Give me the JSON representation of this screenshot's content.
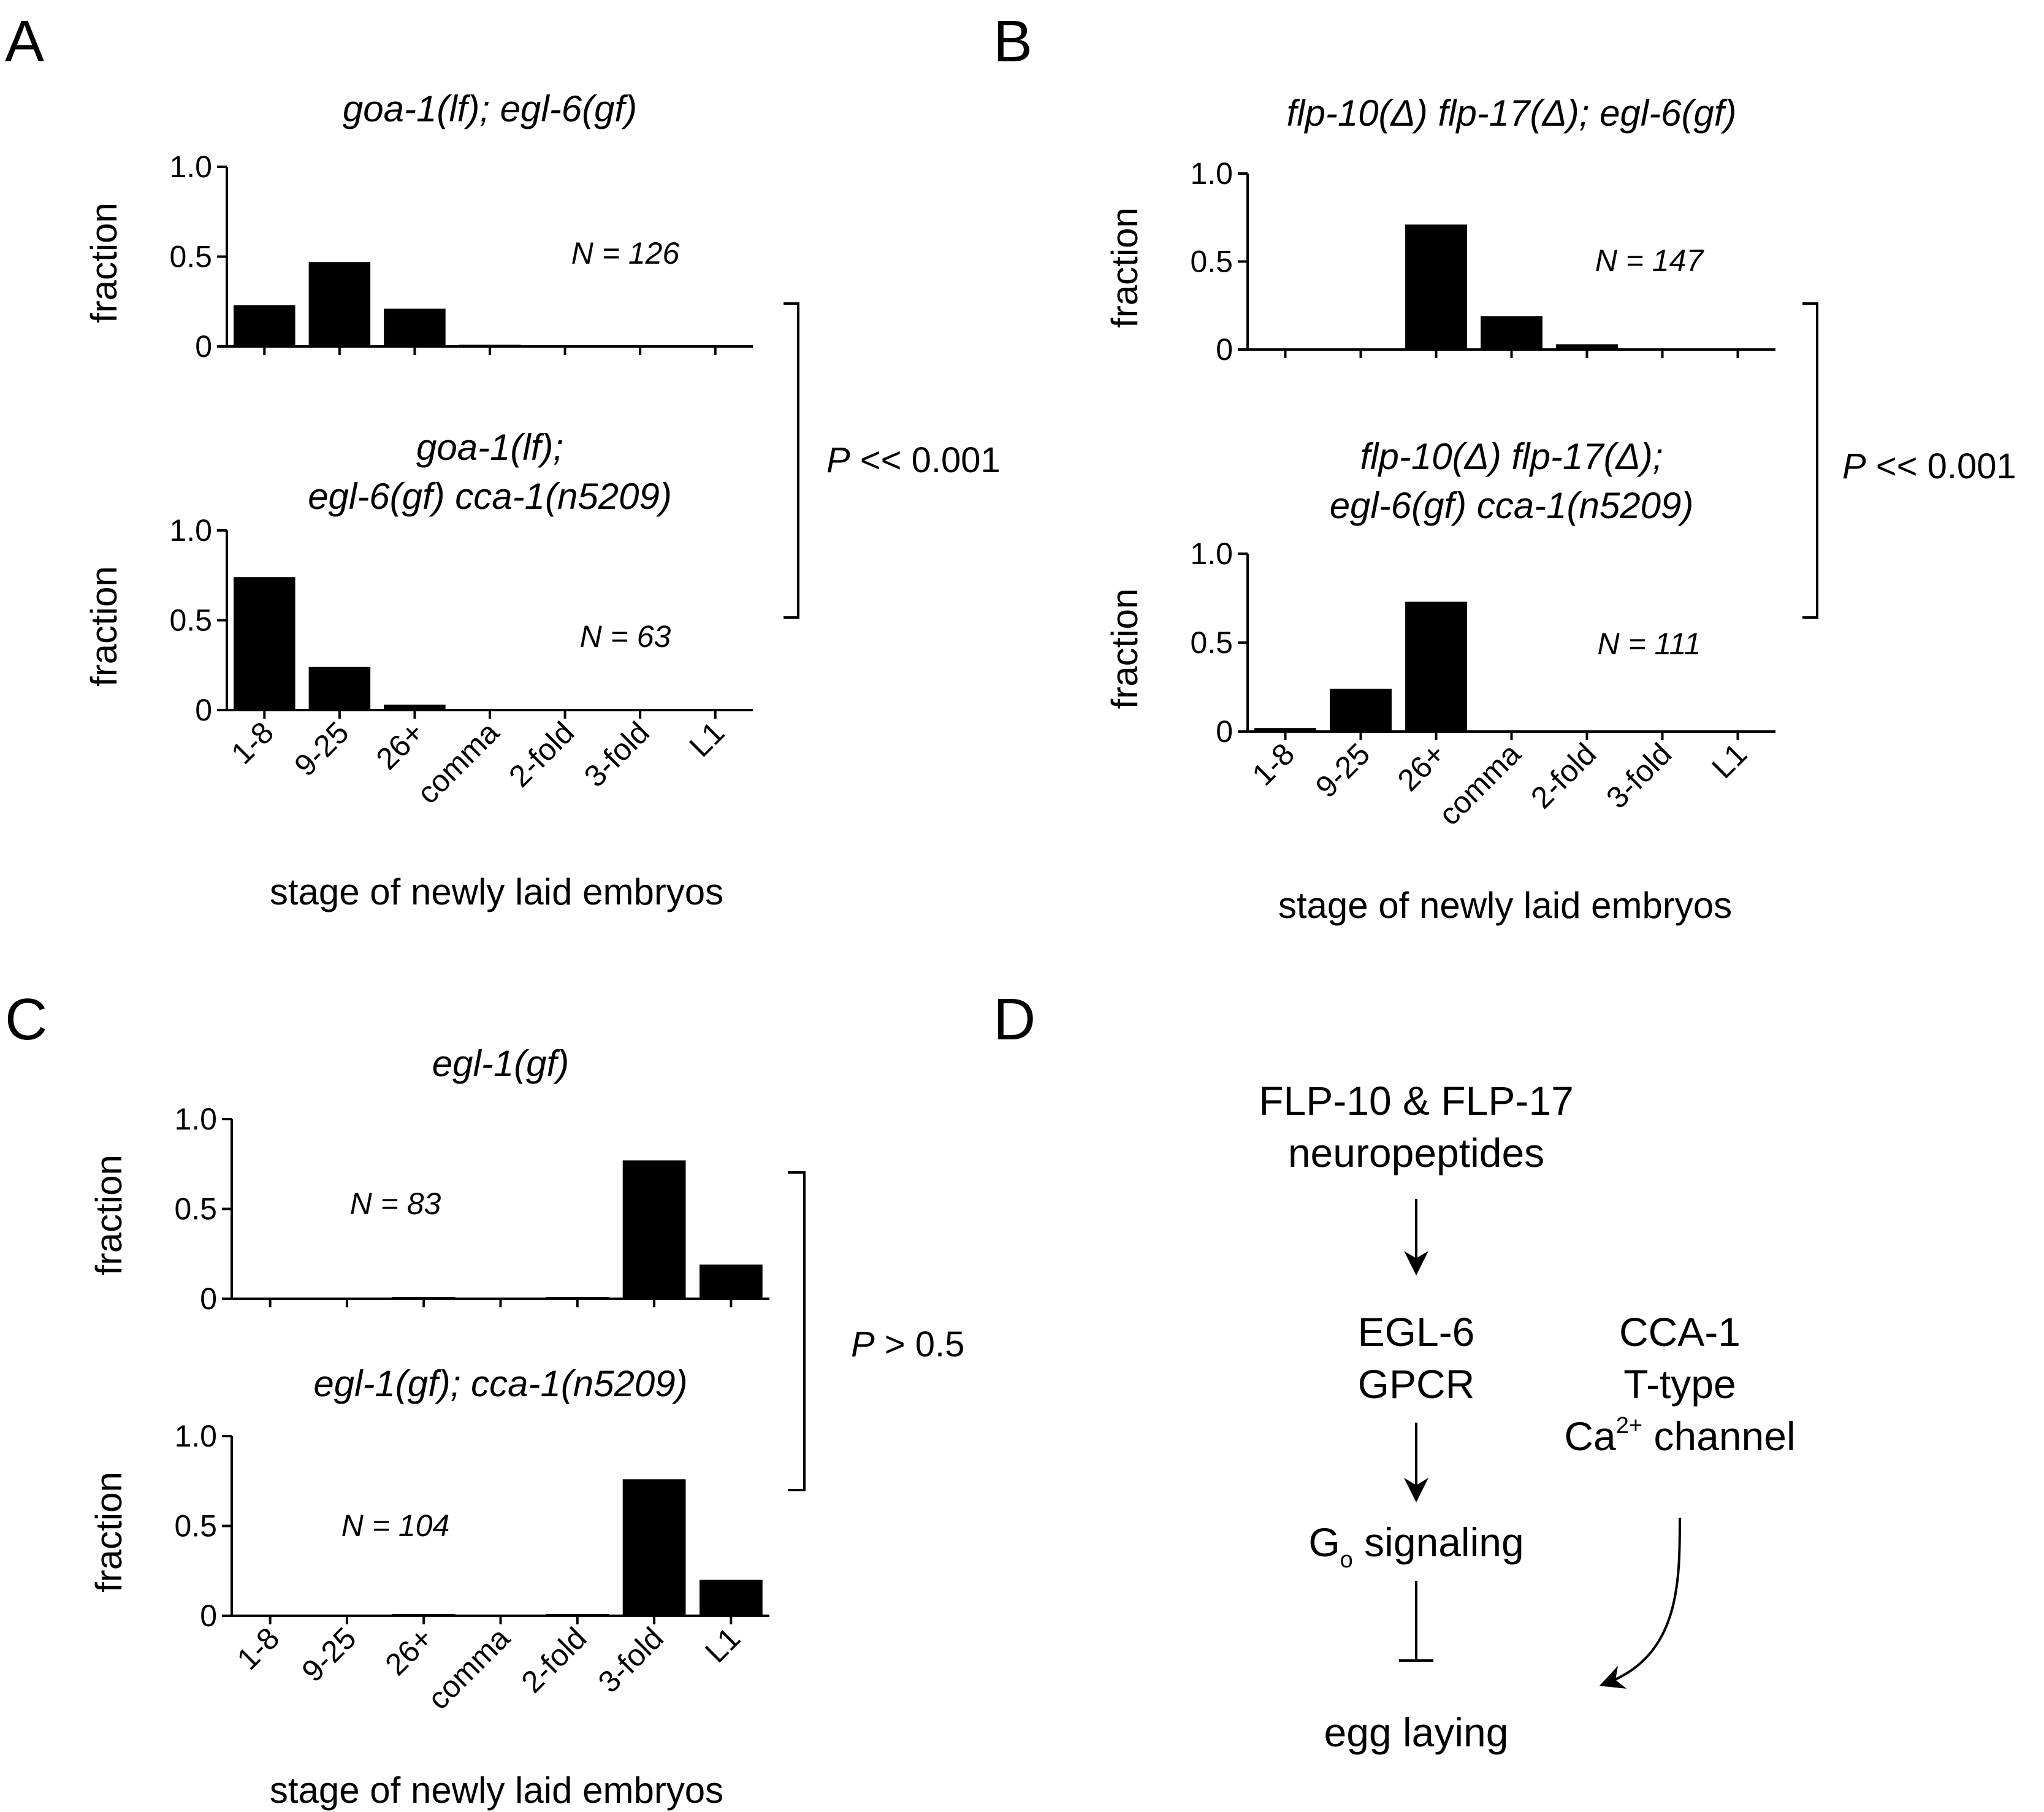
{
  "panels": {
    "A": {
      "letter": "A",
      "xlabel": "stage of newly laid embryos",
      "p_value": {
        "prefix": "P",
        "text": " << 0.001"
      }
    },
    "B": {
      "letter": "B",
      "xlabel": "stage of newly laid embryos",
      "p_value": {
        "prefix": "P",
        "text": " << 0.001"
      }
    },
    "C": {
      "letter": "C",
      "xlabel": "stage of newly laid embryos",
      "p_value": {
        "prefix": "P",
        "text": " > 0.5"
      }
    },
    "D": {
      "letter": "D",
      "nodes": {
        "flp_line1": "FLP-10 & FLP-17",
        "flp_line2": "neuropeptides",
        "egl6_line1": "EGL-6",
        "egl6_line2": "GPCR",
        "cca1_line1": "CCA-1",
        "cca1_line2": "T-type",
        "cca1_line3_base": "Ca",
        "cca1_line3_sup": "2+",
        "cca1_line3_rest": " channel",
        "go_base": "G",
        "go_sub": "o",
        "go_rest": " signaling",
        "egg_laying": "egg laying"
      }
    }
  },
  "chart_data": [
    {
      "type": "bar",
      "panel": "A",
      "title": "goa-1(lf); egl-6(gf)",
      "categories": [
        "1-8",
        "9-25",
        "26+",
        "comma",
        "2-fold",
        "3-fold",
        "L1"
      ],
      "values": [
        0.23,
        0.47,
        0.21,
        0.01,
        0,
        0,
        0
      ],
      "ylabel": "fraction",
      "ylim": [
        0,
        1.0
      ],
      "yticks": [
        "0",
        "0.5",
        "1.0"
      ],
      "n_label": "N = 126",
      "show_tick_labels": false
    },
    {
      "type": "bar",
      "panel": "A",
      "title": [
        "goa-1(lf);",
        "egl-6(gf) cca-1(n5209)"
      ],
      "categories": [
        "1-8",
        "9-25",
        "26+",
        "comma",
        "2-fold",
        "3-fold",
        "L1"
      ],
      "values": [
        0.74,
        0.24,
        0.03,
        0,
        0,
        0,
        0
      ],
      "ylabel": "fraction",
      "ylim": [
        0,
        1.0
      ],
      "yticks": [
        "0",
        "0.5",
        "1.0"
      ],
      "n_label": "N = 63",
      "show_tick_labels": true
    },
    {
      "type": "bar",
      "panel": "B",
      "title": "flp-10(Δ) flp-17(Δ); egl-6(gf)",
      "categories": [
        "1-8",
        "9-25",
        "26+",
        "comma",
        "2-fold",
        "3-fold",
        "L1"
      ],
      "values": [
        0,
        0,
        0.71,
        0.19,
        0.03,
        0,
        0
      ],
      "ylabel": "fraction",
      "ylim": [
        0,
        1.0
      ],
      "yticks": [
        "0",
        "0.5",
        "1.0"
      ],
      "n_label": "N = 147",
      "show_tick_labels": false
    },
    {
      "type": "bar",
      "panel": "B",
      "title": [
        "flp-10(Δ) flp-17(Δ);",
        "egl-6(gf) cca-1(n5209)"
      ],
      "categories": [
        "1-8",
        "9-25",
        "26+",
        "comma",
        "2-fold",
        "3-fold",
        "L1"
      ],
      "values": [
        0.02,
        0.24,
        0.73,
        0,
        0,
        0,
        0
      ],
      "ylabel": "fraction",
      "ylim": [
        0,
        1.0
      ],
      "yticks": [
        "0",
        "0.5",
        "1.0"
      ],
      "n_label": "N = 111",
      "show_tick_labels": true
    },
    {
      "type": "bar",
      "panel": "C",
      "title": "egl-1(gf)",
      "categories": [
        "1-8",
        "9-25",
        "26+",
        "comma",
        "2-fold",
        "3-fold",
        "L1"
      ],
      "values": [
        0,
        0,
        0.01,
        0,
        0.01,
        0.77,
        0.19
      ],
      "ylabel": "fraction",
      "ylim": [
        0,
        1.0
      ],
      "yticks": [
        "0",
        "0.5",
        "1.0"
      ],
      "n_label": "N = 83",
      "show_tick_labels": false
    },
    {
      "type": "bar",
      "panel": "C",
      "title": "egl-1(gf); cca-1(n5209)",
      "categories": [
        "1-8",
        "9-25",
        "26+",
        "comma",
        "2-fold",
        "3-fold",
        "L1"
      ],
      "values": [
        0,
        0,
        0.01,
        0,
        0.01,
        0.76,
        0.2
      ],
      "ylabel": "fraction",
      "ylim": [
        0,
        1.0
      ],
      "yticks": [
        "0",
        "0.5",
        "1.0"
      ],
      "n_label": "N = 104",
      "show_tick_labels": true
    }
  ]
}
